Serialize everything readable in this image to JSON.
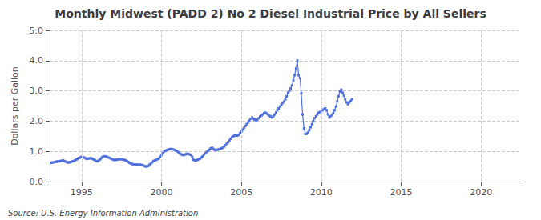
{
  "chart_data": {
    "type": "line",
    "title": "Monthly Midwest (PADD 2) No 2 Diesel Industrial Price by All Sellers",
    "y_label": "Dollars per Gallon",
    "annotations": [
      "Source: U.S. Energy Information Administration"
    ],
    "xlim": [
      1993.0,
      2022.5
    ],
    "ylim": [
      0.0,
      5.0
    ],
    "xticks": [
      1995,
      2000,
      2005,
      2010,
      2015,
      2020
    ],
    "yticks": [
      {
        "value": 0.0,
        "label": "0.0"
      },
      {
        "value": 1.0,
        "label": "1.0"
      },
      {
        "value": 2.0,
        "label": "2.0"
      },
      {
        "value": 3.0,
        "label": "3.0"
      },
      {
        "value": 4.0,
        "label": "4.0"
      },
      {
        "value": 5.0,
        "label": "5.0"
      }
    ],
    "grid": true,
    "marker": "square",
    "line_style": "solid",
    "x": [
      1993.08,
      1993.17,
      1993.25,
      1993.33,
      1993.42,
      1993.5,
      1993.58,
      1993.67,
      1993.75,
      1993.83,
      1993.92,
      1994.0,
      1994.08,
      1994.17,
      1994.25,
      1994.33,
      1994.42,
      1994.5,
      1994.58,
      1994.67,
      1994.75,
      1994.83,
      1994.92,
      1995.0,
      1995.08,
      1995.17,
      1995.25,
      1995.33,
      1995.42,
      1995.5,
      1995.58,
      1995.67,
      1995.75,
      1995.83,
      1995.92,
      1996.0,
      1996.08,
      1996.17,
      1996.25,
      1996.33,
      1996.42,
      1996.5,
      1996.58,
      1996.67,
      1996.75,
      1996.83,
      1996.92,
      1997.0,
      1997.08,
      1997.17,
      1997.25,
      1997.33,
      1997.42,
      1997.5,
      1997.58,
      1997.67,
      1997.75,
      1997.83,
      1997.92,
      1998.0,
      1998.08,
      1998.17,
      1998.25,
      1998.33,
      1998.42,
      1998.5,
      1998.58,
      1998.67,
      1998.75,
      1998.83,
      1998.92,
      1999.0,
      1999.08,
      1999.17,
      1999.25,
      1999.33,
      1999.42,
      1999.5,
      1999.58,
      1999.67,
      1999.75,
      1999.83,
      1999.92,
      2000.0,
      2000.08,
      2000.17,
      2000.25,
      2000.33,
      2000.42,
      2000.5,
      2000.58,
      2000.67,
      2000.75,
      2000.83,
      2000.92,
      2001.0,
      2001.08,
      2001.17,
      2001.25,
      2001.33,
      2001.42,
      2001.5,
      2001.58,
      2001.67,
      2001.75,
      2001.83,
      2001.92,
      2002.0,
      2002.08,
      2002.17,
      2002.25,
      2002.33,
      2002.42,
      2002.5,
      2002.58,
      2002.67,
      2002.75,
      2002.83,
      2002.92,
      2003.0,
      2003.08,
      2003.17,
      2003.25,
      2003.33,
      2003.42,
      2003.5,
      2003.58,
      2003.67,
      2003.75,
      2003.83,
      2003.92,
      2004.0,
      2004.08,
      2004.17,
      2004.25,
      2004.33,
      2004.42,
      2004.5,
      2004.58,
      2004.67,
      2004.75,
      2004.83,
      2004.92,
      2005.0,
      2005.08,
      2005.17,
      2005.25,
      2005.33,
      2005.42,
      2005.5,
      2005.58,
      2005.67,
      2005.75,
      2005.83,
      2005.92,
      2006.0,
      2006.08,
      2006.17,
      2006.25,
      2006.33,
      2006.42,
      2006.5,
      2006.58,
      2006.67,
      2006.75,
      2006.83,
      2006.92,
      2007.0,
      2007.08,
      2007.17,
      2007.25,
      2007.33,
      2007.42,
      2007.5,
      2007.58,
      2007.67,
      2007.75,
      2007.83,
      2007.92,
      2008.0,
      2008.08,
      2008.17,
      2008.25,
      2008.33,
      2008.42,
      2008.5,
      2008.58,
      2008.67,
      2008.75,
      2008.83,
      2008.92,
      2009.0,
      2009.08,
      2009.17,
      2009.25,
      2009.33,
      2009.42,
      2009.5,
      2009.58,
      2009.67,
      2009.75,
      2009.83,
      2009.92,
      2010.0,
      2010.08,
      2010.17,
      2010.25,
      2010.33,
      2010.42,
      2010.5,
      2010.58,
      2010.67,
      2010.75,
      2010.83,
      2010.92,
      2011.0,
      2011.08,
      2011.17,
      2011.25,
      2011.33,
      2011.42,
      2011.5,
      2011.58,
      2011.67,
      2011.75,
      2011.83,
      2011.92
    ],
    "values": [
      0.62,
      0.63,
      0.64,
      0.65,
      0.66,
      0.67,
      0.67,
      0.68,
      0.69,
      0.7,
      0.68,
      0.66,
      0.64,
      0.63,
      0.64,
      0.65,
      0.67,
      0.68,
      0.7,
      0.73,
      0.75,
      0.78,
      0.8,
      0.82,
      0.81,
      0.79,
      0.77,
      0.75,
      0.76,
      0.77,
      0.77,
      0.76,
      0.73,
      0.71,
      0.68,
      0.67,
      0.7,
      0.74,
      0.79,
      0.82,
      0.84,
      0.83,
      0.82,
      0.8,
      0.78,
      0.76,
      0.74,
      0.72,
      0.71,
      0.72,
      0.73,
      0.74,
      0.74,
      0.74,
      0.73,
      0.72,
      0.7,
      0.68,
      0.65,
      0.62,
      0.6,
      0.58,
      0.57,
      0.56,
      0.56,
      0.56,
      0.56,
      0.56,
      0.55,
      0.54,
      0.52,
      0.5,
      0.5,
      0.52,
      0.56,
      0.6,
      0.64,
      0.68,
      0.7,
      0.72,
      0.74,
      0.76,
      0.82,
      0.88,
      0.94,
      1.0,
      1.02,
      1.04,
      1.06,
      1.07,
      1.08,
      1.07,
      1.06,
      1.04,
      1.02,
      1.0,
      0.96,
      0.92,
      0.9,
      0.88,
      0.88,
      0.9,
      0.92,
      0.92,
      0.9,
      0.88,
      0.82,
      0.72,
      0.7,
      0.7,
      0.72,
      0.74,
      0.76,
      0.8,
      0.84,
      0.9,
      0.94,
      0.98,
      1.02,
      1.06,
      1.1,
      1.12,
      1.08,
      1.05,
      1.04,
      1.05,
      1.07,
      1.08,
      1.1,
      1.12,
      1.16,
      1.2,
      1.25,
      1.3,
      1.36,
      1.42,
      1.47,
      1.5,
      1.52,
      1.52,
      1.52,
      1.55,
      1.6,
      1.66,
      1.72,
      1.78,
      1.84,
      1.9,
      1.96,
      2.02,
      2.08,
      2.12,
      2.08,
      2.05,
      2.03,
      2.05,
      2.1,
      2.15,
      2.18,
      2.22,
      2.26,
      2.28,
      2.25,
      2.22,
      2.18,
      2.15,
      2.12,
      2.16,
      2.22,
      2.28,
      2.36,
      2.42,
      2.48,
      2.54,
      2.6,
      2.65,
      2.72,
      2.82,
      2.94,
      3.0,
      3.08,
      3.18,
      3.34,
      3.52,
      3.74,
      4.0,
      3.52,
      3.42,
      2.92,
      2.22,
      1.76,
      1.58,
      1.58,
      1.62,
      1.7,
      1.8,
      1.9,
      2.0,
      2.1,
      2.16,
      2.22,
      2.28,
      2.3,
      2.32,
      2.36,
      2.4,
      2.42,
      2.36,
      2.22,
      2.12,
      2.16,
      2.2,
      2.26,
      2.36,
      2.48,
      2.65,
      2.82,
      2.98,
      3.04,
      2.94,
      2.84,
      2.72,
      2.62,
      2.56,
      2.62,
      2.66,
      2.72
    ]
  }
}
